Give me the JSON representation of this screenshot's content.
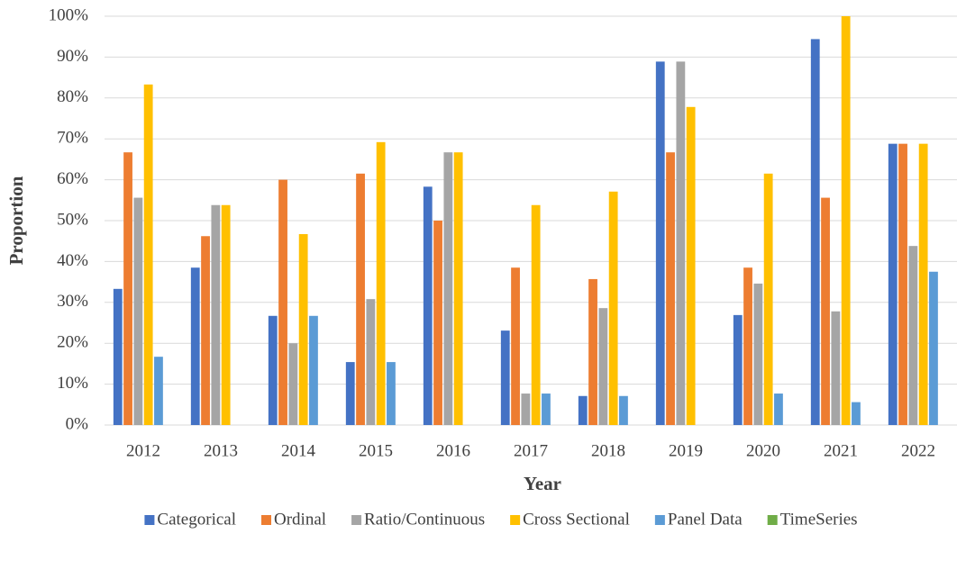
{
  "chart_data": {
    "type": "bar",
    "x_label": "Year",
    "y_label": "Proportion",
    "categories": [
      "2012",
      "2013",
      "2014",
      "2015",
      "2016",
      "2017",
      "2018",
      "2019",
      "2020",
      "2021",
      "2022"
    ],
    "series": [
      {
        "name": "Categorical",
        "color": "#4472c4",
        "values": [
          33.3,
          38.5,
          26.7,
          15.4,
          58.3,
          23.1,
          7.1,
          88.9,
          26.9,
          94.4,
          68.8
        ]
      },
      {
        "name": "Ordinal",
        "color": "#ed7d31",
        "values": [
          66.7,
          46.2,
          60,
          61.5,
          50,
          38.5,
          35.7,
          66.7,
          38.5,
          55.6,
          68.8
        ]
      },
      {
        "name": "Ratio/Continuous",
        "color": "#a5a5a5",
        "values": [
          55.6,
          53.8,
          20,
          30.8,
          66.7,
          7.7,
          28.6,
          88.9,
          34.6,
          27.8,
          43.8
        ]
      },
      {
        "name": "Cross Sectional",
        "color": "#ffc000",
        "values": [
          83.3,
          53.8,
          46.7,
          69.2,
          66.7,
          53.8,
          57.1,
          77.8,
          61.5,
          100,
          68.8
        ]
      },
      {
        "name": "Panel Data",
        "color": "#5b9bd5",
        "values": [
          16.7,
          0,
          26.7,
          15.4,
          0,
          7.7,
          7.1,
          0,
          7.7,
          5.6,
          37.5
        ]
      },
      {
        "name": "TimeSeries",
        "color": "#70ad47",
        "values": [
          0,
          0,
          0,
          0,
          0,
          0,
          0,
          0,
          0,
          0,
          0
        ]
      }
    ],
    "ylim": [
      0,
      100
    ],
    "yticks": [
      {
        "value": 0,
        "label": "0%"
      },
      {
        "value": 10,
        "label": "10%"
      },
      {
        "value": 20,
        "label": "20%"
      },
      {
        "value": 30,
        "label": "30%"
      },
      {
        "value": 40,
        "label": "40%"
      },
      {
        "value": 50,
        "label": "50%"
      },
      {
        "value": 60,
        "label": "60%"
      },
      {
        "value": 70,
        "label": "70%"
      },
      {
        "value": 80,
        "label": "80%"
      },
      {
        "value": 90,
        "label": "90%"
      },
      {
        "value": 100,
        "label": "100%"
      }
    ],
    "grid": true,
    "legend": "bottom"
  }
}
